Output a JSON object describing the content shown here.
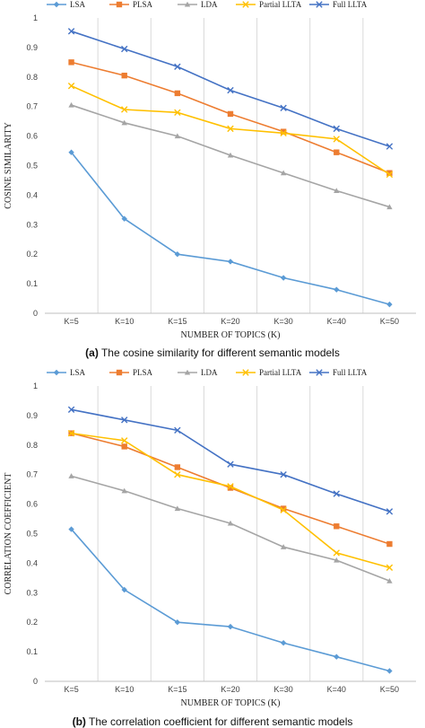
{
  "chart_data": [
    {
      "type": "line",
      "categories": [
        "K=5",
        "K=10",
        "K=15",
        "K=20",
        "K=30",
        "K=40",
        "K=50"
      ],
      "ylabel": "COSINE SIMILARITY",
      "xlabel": "NUMBER OF TOPICS (K)",
      "ylim": [
        0,
        1
      ],
      "yticks": [
        "0",
        "0.1",
        "0.2",
        "0.3",
        "0.4",
        "0.5",
        "0.6",
        "0.7",
        "0.8",
        "0.9",
        "1"
      ],
      "legend_position": "top",
      "grid": "vertical",
      "series": [
        {
          "name": "LSA",
          "color": "#5b9bd5",
          "marker": "diamond",
          "values": [
            0.545,
            0.32,
            0.2,
            0.175,
            0.12,
            0.08,
            0.03
          ]
        },
        {
          "name": "PLSA",
          "color": "#ed7d31",
          "marker": "square",
          "values": [
            0.85,
            0.805,
            0.745,
            0.675,
            0.615,
            0.545,
            0.475
          ]
        },
        {
          "name": "LDA",
          "color": "#a5a5a5",
          "marker": "triangle",
          "values": [
            0.705,
            0.645,
            0.6,
            0.535,
            0.475,
            0.415,
            0.36
          ]
        },
        {
          "name": "Partial LLTA",
          "color": "#ffc000",
          "marker": "x",
          "values": [
            0.77,
            0.69,
            0.68,
            0.625,
            0.61,
            0.59,
            0.47
          ]
        },
        {
          "name": "Full LLTA",
          "color": "#4472c4",
          "marker": "x",
          "values": [
            0.955,
            0.895,
            0.835,
            0.755,
            0.695,
            0.625,
            0.565
          ]
        }
      ]
    },
    {
      "type": "line",
      "categories": [
        "K=5",
        "K=10",
        "K=15",
        "K=20",
        "K=30",
        "K=40",
        "K=50"
      ],
      "ylabel": "CORRELATION COEFFICIENT",
      "xlabel": "NUMBER OF TOPICS (K)",
      "ylim": [
        0,
        1
      ],
      "yticks": [
        "0",
        "0.1",
        "0.2",
        "0.3",
        "0.4",
        "0.5",
        "0.6",
        "0.7",
        "0.8",
        "0.9",
        "1"
      ],
      "legend_position": "top",
      "grid": "vertical",
      "series": [
        {
          "name": "LSA",
          "color": "#5b9bd5",
          "marker": "diamond",
          "values": [
            0.515,
            0.31,
            0.2,
            0.185,
            0.13,
            0.083,
            0.035
          ]
        },
        {
          "name": "PLSA",
          "color": "#ed7d31",
          "marker": "square",
          "values": [
            0.84,
            0.795,
            0.725,
            0.655,
            0.585,
            0.525,
            0.465
          ]
        },
        {
          "name": "LDA",
          "color": "#a5a5a5",
          "marker": "triangle",
          "values": [
            0.695,
            0.645,
            0.585,
            0.535,
            0.455,
            0.41,
            0.34
          ]
        },
        {
          "name": "Partial LLTA",
          "color": "#ffc000",
          "marker": "x",
          "values": [
            0.84,
            0.815,
            0.7,
            0.66,
            0.58,
            0.435,
            0.385
          ]
        },
        {
          "name": "Full LLTA",
          "color": "#4472c4",
          "marker": "x",
          "values": [
            0.92,
            0.885,
            0.85,
            0.735,
            0.7,
            0.635,
            0.575
          ]
        }
      ]
    }
  ],
  "captions": [
    {
      "tag": "(a)",
      "text": "The cosine similarity for different semantic models"
    },
    {
      "tag": "(b)",
      "text": "The correlation coefficient for different semantic models"
    }
  ]
}
